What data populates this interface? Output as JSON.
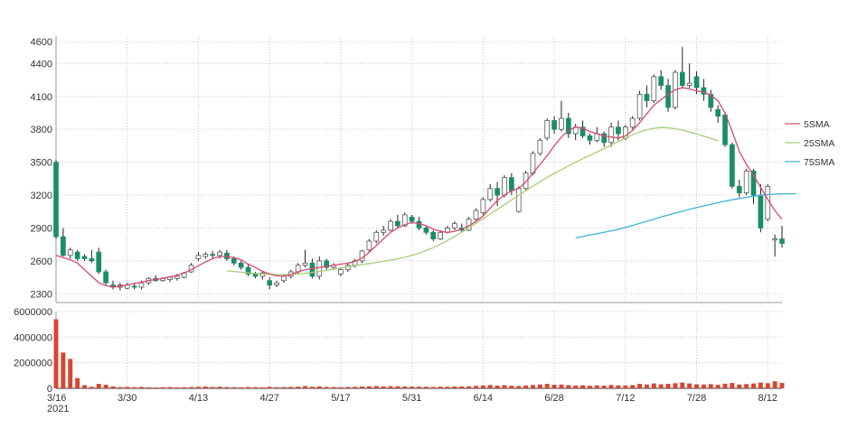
{
  "chart_data": [
    {
      "type": "candlestick",
      "y_ticks": [
        "4600",
        "4400",
        "4100",
        "3800",
        "3500",
        "3200",
        "2900",
        "2600",
        "2300"
      ],
      "y_tick_values": [
        4600,
        4400,
        4100,
        3800,
        3500,
        3200,
        2900,
        2600,
        2300
      ],
      "ylim": [
        2220,
        4650
      ],
      "x_ticks": [
        {
          "label": "3/16",
          "sub": "2021",
          "index": 0
        },
        {
          "label": "3/30",
          "index": 10
        },
        {
          "label": "4/13",
          "index": 20
        },
        {
          "label": "4/27",
          "index": 30
        },
        {
          "label": "5/17",
          "index": 40
        },
        {
          "label": "5/31",
          "index": 50
        },
        {
          "label": "6/14",
          "index": 60
        },
        {
          "label": "6/28",
          "index": 70
        },
        {
          "label": "7/12",
          "index": 80
        },
        {
          "label": "7/28",
          "index": 90
        },
        {
          "label": "8/12",
          "index": 100
        }
      ],
      "grid": true,
      "legend": [
        {
          "name": "5SMA",
          "color": "#d94a6a"
        },
        {
          "name": "25SMA",
          "color": "#a8cc78"
        },
        {
          "name": "75SMA",
          "color": "#3fb3d8"
        }
      ],
      "ohlc": [
        [
          3500,
          3520,
          2800,
          2820
        ],
        [
          2820,
          2900,
          2640,
          2650
        ],
        [
          2650,
          2720,
          2620,
          2700
        ],
        [
          2680,
          2700,
          2600,
          2620
        ],
        [
          2640,
          2660,
          2600,
          2620
        ],
        [
          2620,
          2700,
          2580,
          2600
        ],
        [
          2680,
          2720,
          2480,
          2500
        ],
        [
          2500,
          2520,
          2380,
          2400
        ],
        [
          2380,
          2420,
          2340,
          2360
        ],
        [
          2360,
          2400,
          2330,
          2380
        ],
        [
          2350,
          2400,
          2340,
          2380
        ],
        [
          2370,
          2400,
          2340,
          2360
        ],
        [
          2360,
          2420,
          2340,
          2400
        ],
        [
          2400,
          2450,
          2380,
          2440
        ],
        [
          2440,
          2470,
          2410,
          2420
        ],
        [
          2420,
          2450,
          2410,
          2440
        ],
        [
          2430,
          2460,
          2410,
          2450
        ],
        [
          2440,
          2480,
          2420,
          2460
        ],
        [
          2450,
          2500,
          2440,
          2490
        ],
        [
          2500,
          2580,
          2490,
          2560
        ],
        [
          2620,
          2680,
          2600,
          2650
        ],
        [
          2640,
          2680,
          2620,
          2660
        ],
        [
          2660,
          2690,
          2620,
          2650
        ],
        [
          2650,
          2700,
          2620,
          2680
        ],
        [
          2670,
          2700,
          2600,
          2620
        ],
        [
          2620,
          2640,
          2560,
          2580
        ],
        [
          2580,
          2600,
          2520,
          2540
        ],
        [
          2540,
          2570,
          2460,
          2480
        ],
        [
          2480,
          2500,
          2440,
          2460
        ],
        [
          2460,
          2500,
          2430,
          2490
        ],
        [
          2420,
          2450,
          2340,
          2380
        ],
        [
          2380,
          2420,
          2360,
          2400
        ],
        [
          2420,
          2480,
          2400,
          2460
        ],
        [
          2460,
          2520,
          2440,
          2500
        ],
        [
          2500,
          2580,
          2480,
          2560
        ],
        [
          2560,
          2700,
          2540,
          2580
        ],
        [
          2580,
          2620,
          2440,
          2460
        ],
        [
          2460,
          2640,
          2430,
          2600
        ],
        [
          2600,
          2620,
          2520,
          2540
        ],
        [
          2540,
          2580,
          2520,
          2560
        ],
        [
          2480,
          2540,
          2460,
          2520
        ],
        [
          2520,
          2580,
          2500,
          2560
        ],
        [
          2560,
          2620,
          2540,
          2600
        ],
        [
          2600,
          2700,
          2580,
          2690
        ],
        [
          2700,
          2800,
          2680,
          2780
        ],
        [
          2780,
          2880,
          2760,
          2860
        ],
        [
          2860,
          2920,
          2830,
          2880
        ],
        [
          2880,
          2980,
          2870,
          2960
        ],
        [
          2960,
          3020,
          2900,
          2920
        ],
        [
          2920,
          3040,
          2910,
          3020
        ],
        [
          3000,
          3020,
          2940,
          2960
        ],
        [
          2960,
          3000,
          2880,
          2900
        ],
        [
          2900,
          2920,
          2840,
          2860
        ],
        [
          2860,
          2880,
          2780,
          2800
        ],
        [
          2800,
          2880,
          2790,
          2860
        ],
        [
          2860,
          2920,
          2850,
          2900
        ],
        [
          2900,
          2960,
          2880,
          2940
        ],
        [
          2900,
          2940,
          2860,
          2880
        ],
        [
          2880,
          3000,
          2870,
          2980
        ],
        [
          2980,
          3080,
          2970,
          3060
        ],
        [
          3040,
          3180,
          3020,
          3160
        ],
        [
          3160,
          3300,
          3140,
          3260
        ],
        [
          3260,
          3320,
          3100,
          3200
        ],
        [
          3200,
          3380,
          3180,
          3360
        ],
        [
          3360,
          3400,
          3200,
          3240
        ],
        [
          3050,
          3280,
          3040,
          3260
        ],
        [
          3260,
          3420,
          3240,
          3400
        ],
        [
          3400,
          3600,
          3380,
          3580
        ],
        [
          3580,
          3720,
          3560,
          3700
        ],
        [
          3720,
          3900,
          3700,
          3880
        ],
        [
          3880,
          3920,
          3760,
          3800
        ],
        [
          3800,
          4060,
          3780,
          3900
        ],
        [
          3900,
          3950,
          3720,
          3760
        ],
        [
          3760,
          3850,
          3700,
          3820
        ],
        [
          3820,
          3880,
          3720,
          3740
        ],
        [
          3740,
          3760,
          3660,
          3700
        ],
        [
          3700,
          3820,
          3680,
          3760
        ],
        [
          3760,
          3780,
          3640,
          3680
        ],
        [
          3680,
          3860,
          3640,
          3820
        ],
        [
          3820,
          3880,
          3700,
          3760
        ],
        [
          3720,
          3840,
          3700,
          3820
        ],
        [
          3820,
          3920,
          3800,
          3900
        ],
        [
          3900,
          4150,
          3880,
          4120
        ],
        [
          4120,
          4200,
          4000,
          4060
        ],
        [
          4060,
          4300,
          4040,
          4280
        ],
        [
          4280,
          4340,
          4160,
          4200
        ],
        [
          4200,
          4260,
          3960,
          4000
        ],
        [
          4000,
          4340,
          3980,
          4320
        ],
        [
          4320,
          4550,
          4180,
          4200
        ],
        [
          4200,
          4400,
          4180,
          4220
        ],
        [
          4280,
          4330,
          4120,
          4180
        ],
        [
          4180,
          4260,
          4060,
          4120
        ],
        [
          4120,
          4160,
          3960,
          4000
        ],
        [
          3980,
          4020,
          3860,
          3920
        ],
        [
          3930,
          3960,
          3640,
          3660
        ],
        [
          3660,
          3680,
          3260,
          3280
        ],
        [
          3280,
          3340,
          3180,
          3220
        ],
        [
          3220,
          3440,
          3200,
          3420
        ],
        [
          3420,
          3440,
          3120,
          3200
        ],
        [
          3200,
          3300,
          2860,
          2900
        ],
        [
          2980,
          3300,
          2960,
          3280
        ],
        [
          2800,
          2840,
          2640,
          2800
        ],
        [
          2800,
          2920,
          2720,
          2760
        ]
      ],
      "sma5": [
        2650,
        2630,
        2610,
        2580,
        2520,
        2460,
        2400,
        2375,
        2362,
        2370,
        2380,
        2395,
        2405,
        2420,
        2430,
        2440,
        2455,
        2470,
        2490,
        2520,
        2555,
        2590,
        2620,
        2640,
        2640,
        2630,
        2610,
        2570,
        2540,
        2505,
        2480,
        2465,
        2460,
        2475,
        2500,
        2520,
        2530,
        2540,
        2550,
        2560,
        2570,
        2580,
        2595,
        2625,
        2680,
        2740,
        2800,
        2860,
        2900,
        2930,
        2950,
        2940,
        2920,
        2890,
        2870,
        2860,
        2870,
        2890,
        2920,
        2960,
        3010,
        3080,
        3150,
        3200,
        3240,
        3260,
        3320,
        3400,
        3480,
        3560,
        3650,
        3730,
        3790,
        3820,
        3810,
        3780,
        3760,
        3740,
        3730,
        3720,
        3740,
        3790,
        3860,
        3940,
        4020,
        4070,
        4120,
        4160,
        4180,
        4170,
        4150,
        4140,
        4110,
        4060,
        3950,
        3780,
        3600,
        3480,
        3380,
        3270,
        3160,
        3060,
        2980
      ],
      "sma25_start": 24,
      "sma25": [
        2510,
        2503,
        2497,
        2491,
        2485,
        2480,
        2476,
        2474,
        2474,
        2476,
        2480,
        2486,
        2494,
        2503,
        2513,
        2524,
        2535,
        2546,
        2556,
        2566,
        2576,
        2586,
        2596,
        2607,
        2619,
        2633,
        2650,
        2670,
        2694,
        2721,
        2752,
        2786,
        2823,
        2862,
        2902,
        2943,
        2985,
        3027,
        3070,
        3112,
        3155,
        3198,
        3240,
        3281,
        3321,
        3360,
        3397,
        3432,
        3466,
        3499,
        3531,
        3562,
        3593,
        3625,
        3657,
        3689,
        3720,
        3750,
        3775,
        3796,
        3810,
        3816,
        3814,
        3806,
        3793,
        3777,
        3758,
        3738,
        3717,
        3696
      ],
      "sma75_start": 73,
      "sma75": [
        2810,
        2822,
        2835,
        2848,
        2861,
        2874,
        2888,
        2905,
        2923,
        2942,
        2961,
        2980,
        3000,
        3018,
        3036,
        3053,
        3070,
        3086,
        3101,
        3116,
        3130,
        3144,
        3157,
        3169,
        3180,
        3190,
        3198,
        3204,
        3209,
        3211,
        3212,
        3212
      ]
    },
    {
      "type": "bar",
      "y_ticks": [
        "6000000",
        "4000000",
        "2000000",
        "0"
      ],
      "y_tick_values": [
        6000000,
        4000000,
        2000000,
        0
      ],
      "ylim": [
        0,
        6000000
      ],
      "values": [
        5400000,
        2800000,
        2300000,
        800000,
        250000,
        120000,
        350000,
        280000,
        150000,
        100000,
        120000,
        90000,
        110000,
        80000,
        70000,
        90000,
        100000,
        80000,
        90000,
        100000,
        120000,
        140000,
        110000,
        130000,
        100000,
        90000,
        80000,
        100000,
        90000,
        80000,
        120000,
        90000,
        100000,
        110000,
        130000,
        180000,
        120000,
        150000,
        110000,
        100000,
        90000,
        110000,
        120000,
        140000,
        160000,
        180000,
        150000,
        170000,
        160000,
        150000,
        140000,
        130000,
        120000,
        110000,
        130000,
        120000,
        140000,
        150000,
        160000,
        190000,
        220000,
        260000,
        210000,
        250000,
        200000,
        180000,
        220000,
        260000,
        300000,
        350000,
        280000,
        300000,
        250000,
        220000,
        240000,
        200000,
        230000,
        210000,
        260000,
        230000,
        220000,
        250000,
        350000,
        300000,
        380000,
        320000,
        350000,
        400000,
        450000,
        380000,
        320000,
        300000,
        330000,
        280000,
        360000,
        420000,
        300000,
        330000,
        380000,
        450000,
        400000,
        550000,
        420000
      ],
      "color": "#d94430"
    }
  ]
}
